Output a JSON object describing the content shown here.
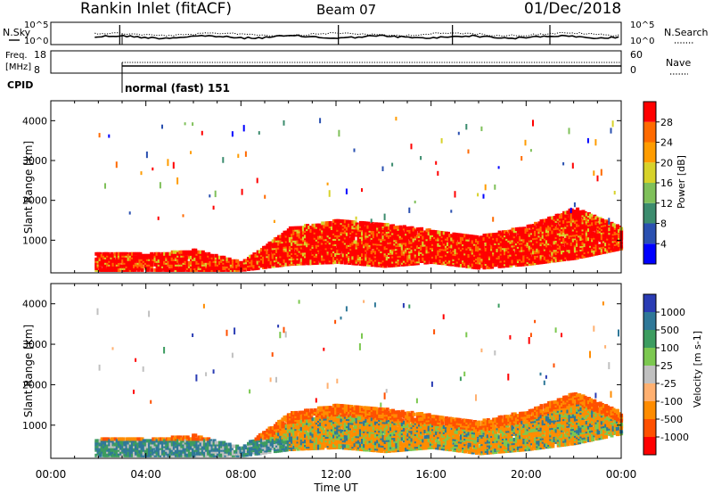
{
  "header": {
    "title": "Rankin Inlet (fitACF)",
    "beam": "Beam 07",
    "date": "01/Dec/2018"
  },
  "top_panels": {
    "nsky_label": "N.Sky",
    "nsky_ticks": [
      "10^5",
      "10^0"
    ],
    "nsearch_label": "N.Search",
    "nsearch_ticks": [
      "10^5",
      "10^0"
    ],
    "freq_label_1": "Freq.",
    "freq_label_2": "[MHz]",
    "freq_ticks": [
      "18",
      "8"
    ],
    "nave_label": "Nave",
    "nave_ticks": [
      "60",
      "0"
    ],
    "cpid_label": "CPID",
    "cpid_value": "normal (fast) 151"
  },
  "chart_data": [
    {
      "type": "heatmap",
      "name": "power",
      "ylabel": "Slant Range [km]",
      "y_ticks": [
        1000,
        2000,
        3000,
        4000
      ],
      "ylim": [
        180,
        4500
      ],
      "x_ticks": [
        "00:00",
        "04:00",
        "08:00",
        "12:00",
        "16:00",
        "20:00",
        "00:00"
      ],
      "xlim_hours": [
        0,
        24
      ],
      "data_start_hour": 1.85,
      "colorbar": {
        "label": "Power [dB]",
        "ticks": [
          "4",
          "8",
          "12",
          "16",
          "20",
          "24",
          "28"
        ],
        "colors": [
          "#0000ff",
          "#2a50b0",
          "#3c8c6e",
          "#7fc05a",
          "#d7d22a",
          "#ff9c00",
          "#ff6a00",
          "#ff0000"
        ]
      },
      "echo_band_km": [
        {
          "h": 2,
          "lo": 250,
          "hi": 700
        },
        {
          "h": 4,
          "lo": 250,
          "hi": 650
        },
        {
          "h": 6,
          "lo": 250,
          "hi": 750
        },
        {
          "h": 8,
          "lo": 250,
          "hi": 450
        },
        {
          "h": 10,
          "lo": 400,
          "hi": 1300
        },
        {
          "h": 12,
          "lo": 450,
          "hi": 1500
        },
        {
          "h": 14,
          "lo": 350,
          "hi": 1400
        },
        {
          "h": 16,
          "lo": 450,
          "hi": 1250
        },
        {
          "h": 18,
          "lo": 300,
          "hi": 1100
        },
        {
          "h": 20,
          "lo": 400,
          "hi": 1350
        },
        {
          "h": 22,
          "lo": 550,
          "hi": 1800
        },
        {
          "h": 24,
          "lo": 800,
          "hi": 1300
        }
      ]
    },
    {
      "type": "heatmap",
      "name": "velocity",
      "ylabel": "Slant Range [km]",
      "y_ticks": [
        1000,
        2000,
        3000,
        4000
      ],
      "ylim": [
        180,
        4500
      ],
      "x_ticks": [
        "00:00",
        "04:00",
        "08:00",
        "12:00",
        "16:00",
        "20:00",
        "00:00"
      ],
      "xlabel": "Time UT",
      "xlim_hours": [
        0,
        24
      ],
      "data_start_hour": 1.85,
      "colorbar": {
        "label": "Velocity [m s-1]",
        "ticks": [
          "1000",
          "500",
          "100",
          "25",
          "-25",
          "-100",
          "-500",
          "-1000"
        ],
        "colors": [
          "#2a3cb4",
          "#2f7898",
          "#3c9c60",
          "#7cc850",
          "#c0c0c0",
          "#ffb070",
          "#ff8c00",
          "#ff5000",
          "#ff0000"
        ]
      },
      "echo_band_km": [
        {
          "h": 2,
          "lo": 250,
          "hi": 700
        },
        {
          "h": 4,
          "lo": 250,
          "hi": 650
        },
        {
          "h": 6,
          "lo": 250,
          "hi": 750
        },
        {
          "h": 8,
          "lo": 250,
          "hi": 450
        },
        {
          "h": 10,
          "lo": 400,
          "hi": 1300
        },
        {
          "h": 12,
          "lo": 450,
          "hi": 1500
        },
        {
          "h": 14,
          "lo": 350,
          "hi": 1400
        },
        {
          "h": 16,
          "lo": 450,
          "hi": 1250
        },
        {
          "h": 18,
          "lo": 300,
          "hi": 1100
        },
        {
          "h": 20,
          "lo": 400,
          "hi": 1350
        },
        {
          "h": 22,
          "lo": 550,
          "hi": 1800
        },
        {
          "h": 24,
          "lo": 800,
          "hi": 1300
        }
      ]
    }
  ]
}
